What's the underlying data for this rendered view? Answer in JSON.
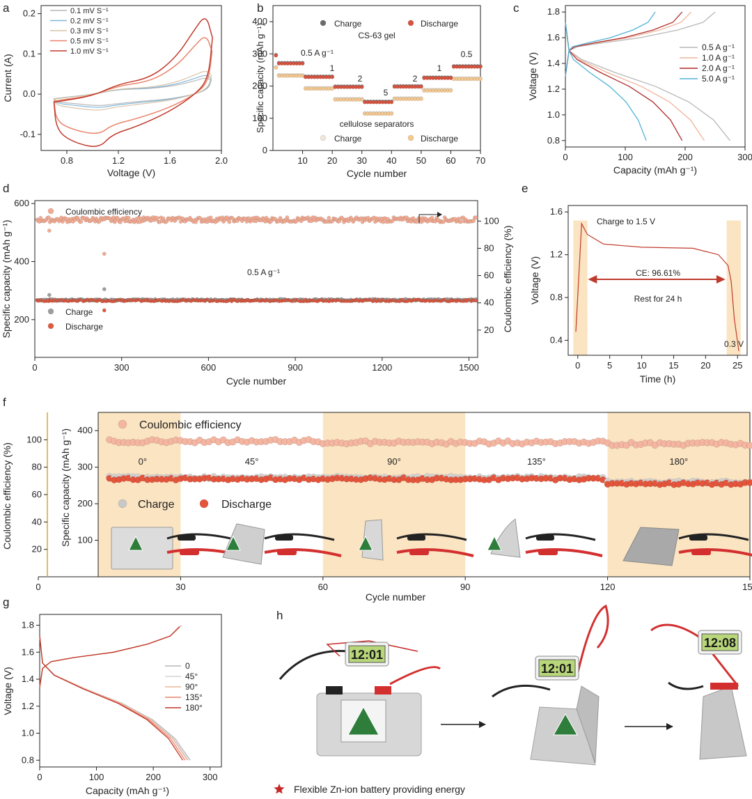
{
  "panel_labels": {
    "a": "a",
    "b": "b",
    "c": "c",
    "d": "d",
    "e": "e",
    "f": "f",
    "g": "g",
    "h": "h"
  },
  "colors": {
    "accent_red": "#c0392b",
    "dark_red": "#b02a2a",
    "salmon": "#e8836a",
    "light_salmon": "#efb49b",
    "peach": "#f3c47a",
    "light_blue": "#7fb6d8",
    "cyan": "#4fb3d6",
    "grey": "#a9a9a9",
    "band": "#fbe4c2"
  },
  "chart_data": [
    {
      "id": "a",
      "type": "line",
      "xlabel": "Voltage (V)",
      "ylabel": "Current (A)",
      "xlim": [
        0.6,
        2.0
      ],
      "ylim": [
        -0.14,
        0.22
      ],
      "xticks": [
        "0.8",
        "1.2",
        "1.6",
        "2.0"
      ],
      "yticks": [
        "-0.1",
        "0.0",
        "0.1",
        "0.2"
      ],
      "legend": [
        "0.1 mV S⁻¹",
        "0.2 mV S⁻¹",
        "0.3 mV S⁻¹",
        "0.5 mV S⁻¹",
        "1.0 mV S⁻¹"
      ],
      "series": [
        {
          "name": "0.1 mV S⁻¹",
          "color": "#b7b7b7",
          "amp": 0.12
        },
        {
          "name": "0.2 mV S⁻¹",
          "color": "#7fb6d8",
          "amp": 0.16
        },
        {
          "name": "0.3 mV S⁻¹",
          "color": "#d9c3a8",
          "amp": 0.22
        },
        {
          "name": "0.5 mV S⁻¹",
          "color": "#e8836a",
          "amp": 0.72
        },
        {
          "name": "1.0 mV S⁻¹",
          "color": "#c0392b",
          "amp": 1.0
        }
      ],
      "peaks": {
        "ox_v": 1.88,
        "ox_i": 0.2,
        "red_v": 1.05,
        "red_i": -0.135
      }
    },
    {
      "id": "b",
      "type": "scatter",
      "xlabel": "Cycle number",
      "ylabel": "Specific capacity (mAh g⁻¹)",
      "xlim": [
        0,
        70
      ],
      "ylim": [
        0,
        450
      ],
      "xticks": [
        "10",
        "20",
        "30",
        "40",
        "50",
        "60",
        "70"
      ],
      "yticks": [
        "0",
        "100",
        "200",
        "300",
        "400"
      ],
      "title_top": "CS-63 gel",
      "title_bottom": "cellulose separators",
      "legend_top": [
        "Charge",
        "Discharge"
      ],
      "legend_bottom": [
        "Charge",
        "Discharge"
      ],
      "rate_labels": [
        "0.5 A g⁻¹",
        "1",
        "2",
        "5",
        "2",
        "1",
        "0.5"
      ],
      "segments_gel": [
        270,
        228,
        197,
        150,
        198,
        225,
        260
      ],
      "segments_cellulose": [
        232,
        192,
        158,
        114,
        160,
        186,
        222
      ]
    },
    {
      "id": "c",
      "type": "line",
      "xlabel": "Capacity (mAh g⁻¹)",
      "ylabel": "Voltage (V)",
      "xlim": [
        0,
        300
      ],
      "ylim": [
        0.75,
        1.85
      ],
      "xticks": [
        "0",
        "100",
        "200",
        "300"
      ],
      "yticks": [
        "0.8",
        "1.0",
        "1.2",
        "1.4",
        "1.6",
        "1.8"
      ],
      "legend": [
        "0.5 A g⁻¹",
        "1.0 A g⁻¹",
        "2.0 A g⁻¹",
        "5.0 A g⁻¹"
      ],
      "series": [
        {
          "name": "0.5 A g⁻¹",
          "color": "#b7b7b7",
          "charge_cap": 250,
          "discharge_cap": 275
        },
        {
          "name": "1.0 A g⁻¹",
          "color": "#efb49b",
          "charge_cap": 210,
          "discharge_cap": 232
        },
        {
          "name": "2.0 A g⁻¹",
          "color": "#b02a2a",
          "charge_cap": 195,
          "discharge_cap": 195
        },
        {
          "name": "5.0 A g⁻¹",
          "color": "#4fb3d6",
          "charge_cap": 150,
          "discharge_cap": 135
        }
      ]
    },
    {
      "id": "d",
      "type": "scatter",
      "xlabel": "Cycle number",
      "ylabel": "Specific capacity (mAh g⁻¹)",
      "y2label": "Coulombic efficiency (%)",
      "xlim": [
        0,
        1530
      ],
      "ylim": [
        70,
        610
      ],
      "y2lim": [
        0,
        115
      ],
      "xticks": [
        "0",
        "300",
        "600",
        "900",
        "1200",
        "1500"
      ],
      "yticks": [
        "200",
        "400",
        "600"
      ],
      "y2ticks": [
        "20",
        "40",
        "60",
        "80",
        "100"
      ],
      "legend": [
        "Coulombic efficiency",
        "Charge",
        "Discharge"
      ],
      "annotation": "0.5 A g⁻¹",
      "capacity_mean": 266,
      "ce_mean": 101,
      "outliers": [
        {
          "cycle": 50,
          "capacity": 285
        },
        {
          "cycle": 240,
          "capacity": 305
        },
        {
          "cycle": 240,
          "capacity": 232
        },
        {
          "cycle": 50,
          "ce": 93
        },
        {
          "cycle": 240,
          "ce": 76
        }
      ]
    },
    {
      "id": "e",
      "type": "line",
      "xlabel": "Time (h)",
      "ylabel": "Voltage (V)",
      "xlim": [
        -1.5,
        26.5
      ],
      "ylim": [
        0.26,
        1.66
      ],
      "xticks": [
        "0",
        "5",
        "10",
        "15",
        "20",
        "25"
      ],
      "yticks": [
        "0.4",
        "0.8",
        "1.2",
        "1.6"
      ],
      "annotations": [
        "Charge to 1.5 V",
        "CE: 96.61%",
        "Rest for 24 h",
        "0.3 V"
      ],
      "points": [
        [
          -0.3,
          0.48
        ],
        [
          0.6,
          1.49
        ],
        [
          1.5,
          1.39
        ],
        [
          4,
          1.3
        ],
        [
          10,
          1.27
        ],
        [
          18,
          1.26
        ],
        [
          22,
          1.2
        ],
        [
          23.5,
          1.1
        ],
        [
          24,
          0.95
        ],
        [
          24.5,
          0.6
        ],
        [
          25.2,
          0.3
        ]
      ]
    },
    {
      "id": "f",
      "type": "scatter",
      "xlabel": "Cycle number",
      "ylabel": "Specific capacity (mAh g⁻¹)",
      "y2label": "Coulombic efficiency (%)",
      "xlim": [
        0,
        150
      ],
      "ylim": [
        0,
        450
      ],
      "y2lim": [
        0,
        120
      ],
      "xticks": [
        "0",
        "30",
        "60",
        "90",
        "120",
        "150"
      ],
      "yticks": [
        "100",
        "200",
        "300",
        "400"
      ],
      "y2ticks": [
        "20",
        "40",
        "60",
        "80",
        "100"
      ],
      "legend": [
        "Coulombic efficiency",
        "Charge",
        "Discharge"
      ],
      "angles": [
        "0°",
        "45°",
        "90°",
        "135°",
        "180°"
      ],
      "capacity_by_segment": [
        268,
        268,
        268,
        268,
        255
      ],
      "ce_by_segment": [
        99,
        99,
        98,
        98,
        97
      ]
    },
    {
      "id": "g",
      "type": "line",
      "xlabel": "Capacity (mAh g⁻¹)",
      "ylabel": "Voltage (V)",
      "xlim": [
        0,
        320
      ],
      "ylim": [
        0.75,
        1.88
      ],
      "xticks": [
        "0",
        "100",
        "200",
        "300"
      ],
      "yticks": [
        "0.8",
        "1.0",
        "1.2",
        "1.4",
        "1.6",
        "1.8"
      ],
      "legend": [
        "0",
        "45°",
        "90°",
        "135°",
        "180°"
      ],
      "series": [
        {
          "name": "0",
          "color": "#b7b7b7",
          "discharge_cap": 265
        },
        {
          "name": "45°",
          "color": "#d5d5d5",
          "discharge_cap": 262
        },
        {
          "name": "90°",
          "color": "#efb49b",
          "discharge_cap": 260
        },
        {
          "name": "135°",
          "color": "#e8836a",
          "discharge_cap": 256
        },
        {
          "name": "180°",
          "color": "#c0392b",
          "discharge_cap": 252
        }
      ]
    }
  ],
  "photos": {
    "clock_1": "12:01",
    "clock_2": "12:01",
    "clock_3": "12:08",
    "caption": "Flexible Zn-ion battery providing energy"
  }
}
